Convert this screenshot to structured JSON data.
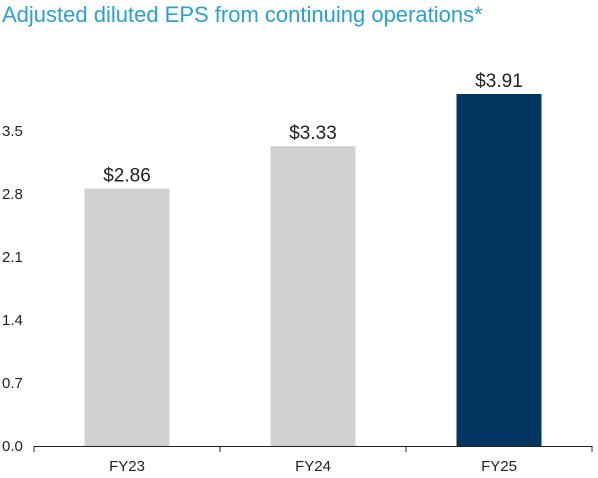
{
  "chart_data": {
    "type": "bar",
    "title": "Adjusted diluted EPS from continuing operations*",
    "categories": [
      "FY23",
      "FY24",
      "FY25"
    ],
    "values": [
      2.86,
      3.33,
      3.91
    ],
    "data_labels": [
      "$2.86",
      "$3.33",
      "$3.91"
    ],
    "yticks": [
      0.0,
      0.7,
      1.4,
      2.1,
      2.8,
      3.5
    ],
    "ytick_labels": [
      "0.0",
      "0.7",
      "1.4",
      "2.1",
      "2.8",
      "3.5"
    ],
    "ylim": [
      0,
      3.91
    ],
    "xlabel": "",
    "ylabel": "",
    "grid": false,
    "legend": "none",
    "colors": {
      "bar_default": "#d0d1d1",
      "bar_highlight": "#003660",
      "label_default": "#222222",
      "label_highlight": "#2aa0d4",
      "title": "#2aa0d4"
    },
    "highlight_index": 2
  }
}
